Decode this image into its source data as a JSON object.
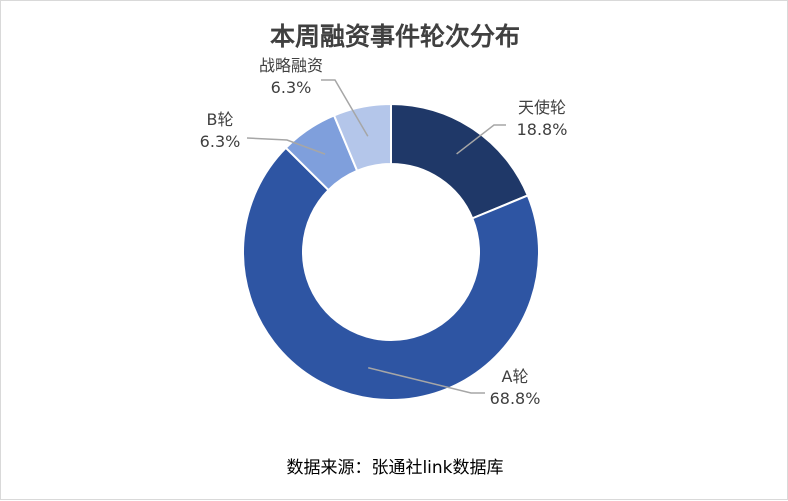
{
  "chart_data": {
    "type": "pie",
    "title": "本周融资事件轮次分布",
    "source": "数据来源：张通社link数据库",
    "slices": [
      {
        "name": "天使轮",
        "value": 18.8,
        "value_label": "18.8%",
        "color": "#1f3868"
      },
      {
        "name": "A轮",
        "value": 68.8,
        "value_label": "68.8%",
        "color": "#2e55a3"
      },
      {
        "name": "B轮",
        "value": 6.3,
        "value_label": "6.3%",
        "color": "#7f9fdc"
      },
      {
        "name": "战略融资",
        "value": 6.3,
        "value_label": "6.3%",
        "color": "#b4c6ea"
      }
    ]
  }
}
